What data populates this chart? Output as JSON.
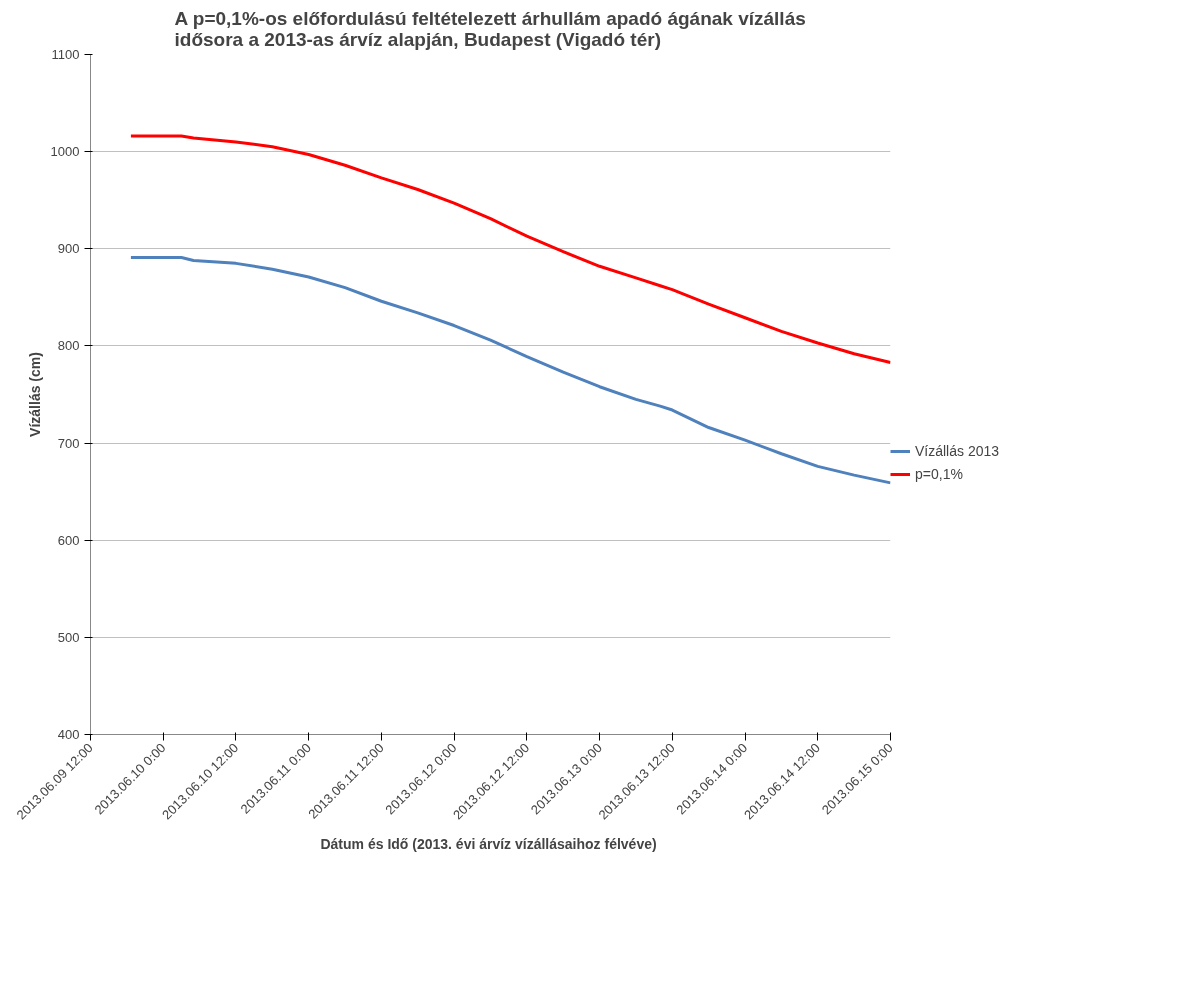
{
  "chart_data": {
    "type": "line",
    "title": "A p=0,1%-os előfordulású feltételezett árhullám apadó ágának vízállás idősora a 2013-as árvíz  alapján, Budapest (Vigadó tér)",
    "xlabel": "Dátum és Idő (2013. évi árvíz vízállásaihoz  félvéve)",
    "ylabel": "Vízállás (cm)",
    "x": [
      "2013-06-09T18:40",
      "2013-06-10T03:00",
      "2013-06-10T05:00",
      "2013-06-10T12:00",
      "2013-06-10T18:00",
      "2013-06-11T00:00",
      "2013-06-11T06:00",
      "2013-06-11T12:00",
      "2013-06-11T18:00",
      "2013-06-12T00:00",
      "2013-06-12T06:00",
      "2013-06-12T12:00",
      "2013-06-12T18:00",
      "2013-06-13T00:00",
      "2013-06-13T06:00",
      "2013-06-13T10:00",
      "2013-06-13T12:00",
      "2013-06-13T18:00",
      "2013-06-14T00:00",
      "2013-06-14T06:00",
      "2013-06-14T12:00",
      "2013-06-14T18:00",
      "2013-06-15T00:00"
    ],
    "series": [
      {
        "name": "Vízállás 2013",
        "color": "#4f81bd",
        "values": [
          891,
          891,
          888,
          885,
          879,
          871,
          860,
          846,
          834,
          821,
          806,
          789,
          773,
          758,
          745,
          738,
          734,
          716,
          703,
          689,
          676,
          667,
          659
        ]
      },
      {
        "name": "p=0,1%",
        "color": "#ff0000",
        "values": [
          1016,
          1016,
          1014,
          1010,
          1005,
          997,
          986,
          973,
          961,
          947,
          931,
          913,
          897,
          882,
          870,
          862,
          858,
          843,
          829,
          815,
          803,
          792,
          783
        ]
      }
    ],
    "xlim": [
      "2013-06-09T12:00",
      "2013-06-15T00:00"
    ],
    "xticks": [
      {
        "value": "2013-06-09T12:00",
        "label": "2013.06.09 12:00"
      },
      {
        "value": "2013-06-10T00:00",
        "label": "2013.06.10 0:00"
      },
      {
        "value": "2013-06-10T12:00",
        "label": "2013.06.10 12:00"
      },
      {
        "value": "2013-06-11T00:00",
        "label": "2013.06.11 0:00"
      },
      {
        "value": "2013-06-11T12:00",
        "label": "2013.06.11 12:00"
      },
      {
        "value": "2013-06-12T00:00",
        "label": "2013.06.12 0:00"
      },
      {
        "value": "2013-06-12T12:00",
        "label": "2013.06.12 12:00"
      },
      {
        "value": "2013-06-13T00:00",
        "label": "2013.06.13 0:00"
      },
      {
        "value": "2013-06-13T12:00",
        "label": "2013.06.13 12:00"
      },
      {
        "value": "2013-06-14T00:00",
        "label": "2013.06.14 0:00"
      },
      {
        "value": "2013-06-14T12:00",
        "label": "2013.06.14 12:00"
      },
      {
        "value": "2013-06-15T00:00",
        "label": "2013.06.15 0:00"
      }
    ],
    "ylim": [
      400,
      1100
    ],
    "yticks": [
      400,
      500,
      600,
      700,
      800,
      900,
      1000,
      1100
    ],
    "grid": "y",
    "legend": "right",
    "marker": "none",
    "line_style": "solid"
  }
}
